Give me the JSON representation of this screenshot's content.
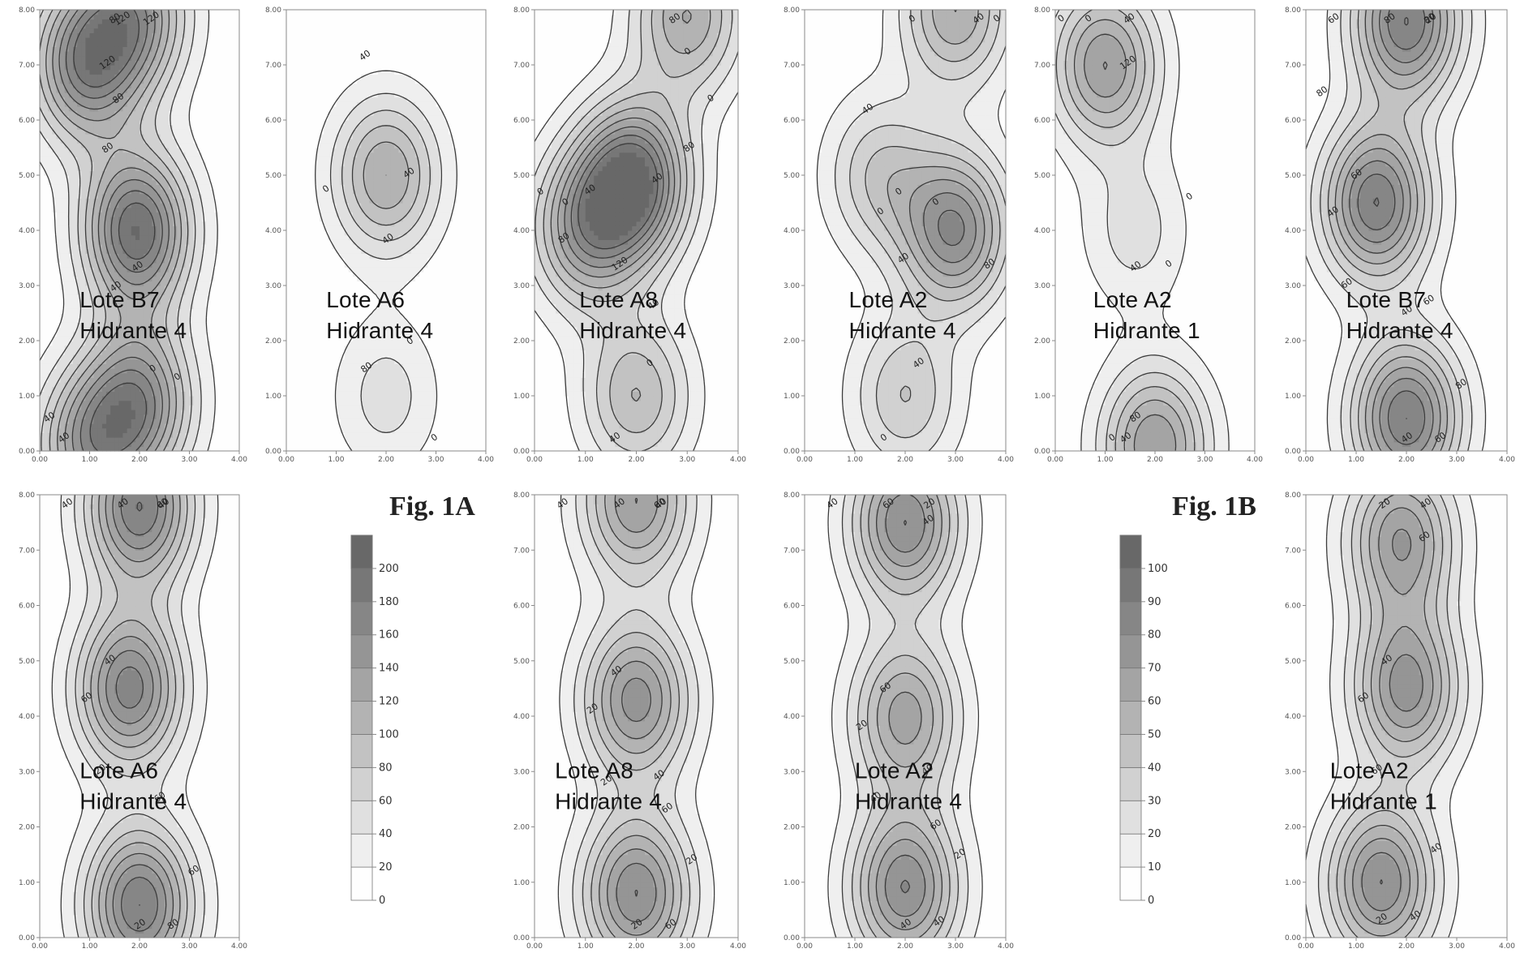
{
  "figures": [
    {
      "title": "Fig. 1A"
    },
    {
      "title": "Fig. 1B"
    }
  ],
  "colorbars": [
    {
      "levels": [
        0,
        20,
        40,
        60,
        80,
        100,
        120,
        140,
        160,
        180,
        200
      ]
    },
    {
      "levels": [
        0,
        10,
        20,
        30,
        40,
        50,
        60,
        70,
        80,
        90,
        100
      ]
    }
  ],
  "chart_data": [
    {
      "type": "contour",
      "figure": "Fig. 1A",
      "label": "Lote B7",
      "hydrant": "Hidrante 4",
      "xlim": [
        0,
        4
      ],
      "ylim": [
        0,
        8
      ],
      "x_ticks": [
        "0.00",
        "1.00",
        "2.00",
        "3.00",
        "4.00"
      ],
      "y_ticks": [
        "0.00",
        "1.00",
        "2.00",
        "3.00",
        "4.00",
        "5.00",
        "6.00",
        "7.00",
        "8.00"
      ],
      "peaks": [
        {
          "x": 0.9,
          "y": 7.0,
          "value": 160
        },
        {
          "x": 1.9,
          "y": 7.9,
          "value": 140
        },
        {
          "x": 1.95,
          "y": 4.0,
          "value": 200
        },
        {
          "x": 2.0,
          "y": 0.9,
          "value": 150
        },
        {
          "x": 1.0,
          "y": 0.1,
          "value": 130
        }
      ],
      "contour_labels": [
        "120",
        "80",
        "40",
        "0",
        "40",
        "80",
        "120",
        "40",
        "0",
        "40",
        "80",
        "120"
      ]
    },
    {
      "type": "contour",
      "figure": "Fig. 1A",
      "label": "Lote A6",
      "hydrant": "Hidrante 4",
      "xlim": [
        0,
        4
      ],
      "ylim": [
        0,
        8
      ],
      "x_ticks": [
        "0.00",
        "1.00",
        "2.00",
        "3.00",
        "4.00"
      ],
      "y_ticks": [
        "0.00",
        "1.00",
        "2.00",
        "3.00",
        "4.00",
        "5.00",
        "6.00",
        "7.00",
        "8.00"
      ],
      "peaks": [
        {
          "x": 2.0,
          "y": 5.0,
          "value": 120
        },
        {
          "x": 2.0,
          "y": 1.0,
          "value": 50
        }
      ],
      "contour_labels": [
        "40",
        "80",
        "40",
        "0",
        "0",
        "0",
        "40"
      ]
    },
    {
      "type": "contour",
      "figure": "Fig. 1A",
      "label": "Lote A8",
      "hydrant": "Hidrante 4",
      "xlim": [
        0,
        4
      ],
      "ylim": [
        0,
        8
      ],
      "x_ticks": [
        "0.00",
        "1.00",
        "2.00",
        "3.00",
        "4.00"
      ],
      "y_ticks": [
        "0.00",
        "1.00",
        "2.00",
        "3.00",
        "4.00",
        "5.00",
        "6.00",
        "7.00",
        "8.00"
      ],
      "peaks": [
        {
          "x": 1.95,
          "y": 4.9,
          "value": 200
        },
        {
          "x": 1.0,
          "y": 4.0,
          "value": 130
        },
        {
          "x": 3.0,
          "y": 7.9,
          "value": 120
        },
        {
          "x": 2.0,
          "y": 1.0,
          "value": 100
        }
      ],
      "contour_labels": [
        "40",
        "0",
        "0",
        "0",
        "40",
        "120",
        "80",
        "40",
        "80",
        "0",
        "0",
        "40",
        "80"
      ]
    },
    {
      "type": "contour",
      "figure": "Fig. 1A",
      "label": "Lote A2",
      "hydrant": "Hidrante 4",
      "xlim": [
        0,
        4
      ],
      "ylim": [
        0,
        8
      ],
      "x_ticks": [
        "0.00",
        "1.00",
        "2.00",
        "3.00",
        "4.00"
      ],
      "y_ticks": [
        "0.00",
        "1.00",
        "2.00",
        "3.00",
        "4.00",
        "5.00",
        "6.00",
        "7.00",
        "8.00"
      ],
      "peaks": [
        {
          "x": 3.0,
          "y": 8.0,
          "value": 120
        },
        {
          "x": 3.0,
          "y": 4.0,
          "value": 160
        },
        {
          "x": 1.5,
          "y": 5.0,
          "value": 80
        },
        {
          "x": 2.0,
          "y": 1.0,
          "value": 80
        }
      ],
      "contour_labels": [
        "40",
        "0",
        "0",
        "40",
        "0",
        "80",
        "40",
        "0",
        "0",
        "0",
        "40"
      ]
    },
    {
      "type": "contour",
      "figure": "Fig. 1A",
      "label": "Lote A2",
      "hydrant": "Hidrante 1",
      "xlim": [
        0,
        4
      ],
      "ylim": [
        0,
        8
      ],
      "x_ticks": [
        "0.00",
        "1.00",
        "2.00",
        "3.00",
        "4.00"
      ],
      "y_ticks": [
        "0.00",
        "1.00",
        "2.00",
        "3.00",
        "4.00",
        "5.00",
        "6.00",
        "7.00",
        "8.00"
      ],
      "peaks": [
        {
          "x": 1.0,
          "y": 7.0,
          "value": 140
        },
        {
          "x": 2.0,
          "y": 0.1,
          "value": 140
        },
        {
          "x": 1.6,
          "y": 4.0,
          "value": 50
        }
      ],
      "contour_labels": [
        "120",
        "80",
        "40",
        "40",
        "0",
        "0",
        "0",
        "40",
        "0",
        "0"
      ]
    },
    {
      "type": "contour",
      "figure": "Fig. 1B",
      "label": "Lote B7",
      "hydrant": "Hidrante 4",
      "xlim": [
        0,
        4
      ],
      "ylim": [
        0,
        8
      ],
      "x_ticks": [
        "0.00",
        "1.00",
        "2.00",
        "3.00",
        "4.00"
      ],
      "y_ticks": [
        "0.00",
        "1.00",
        "2.00",
        "3.00",
        "4.00",
        "5.00",
        "6.00",
        "7.00",
        "8.00"
      ],
      "peaks": [
        {
          "x": 2.0,
          "y": 7.8,
          "value": 90
        },
        {
          "x": 1.4,
          "y": 4.5,
          "value": 90
        },
        {
          "x": 2.0,
          "y": 0.6,
          "value": 90
        }
      ],
      "contour_labels": [
        "80",
        "60",
        "40",
        "20",
        "40",
        "60",
        "80",
        "60",
        "80",
        "60",
        "40",
        "60",
        "80"
      ]
    },
    {
      "type": "contour",
      "figure": "Fig. 1B",
      "label": "Lote A6",
      "hydrant": "Hidrante 4",
      "xlim": [
        0,
        4
      ],
      "ylim": [
        0,
        8
      ],
      "x_ticks": [
        "0.00",
        "1.00",
        "2.00",
        "3.00",
        "4.00"
      ],
      "y_ticks": [
        "0.00",
        "1.00",
        "2.00",
        "3.00",
        "4.00",
        "5.00",
        "6.00",
        "7.00",
        "8.00"
      ],
      "peaks": [
        {
          "x": 2.0,
          "y": 7.8,
          "value": 90
        },
        {
          "x": 1.8,
          "y": 4.5,
          "value": 85
        },
        {
          "x": 2.0,
          "y": 0.6,
          "value": 90
        }
      ],
      "contour_labels": [
        "60",
        "40",
        "20",
        "40",
        "60",
        "80",
        "40",
        "20",
        "60",
        "40",
        "60"
      ]
    },
    {
      "type": "contour",
      "figure": "Fig. 1B",
      "label": "Lote A8",
      "hydrant": "Hidrante 4",
      "xlim": [
        0,
        4
      ],
      "ylim": [
        0,
        8
      ],
      "x_ticks": [
        "0.00",
        "1.00",
        "2.00",
        "3.00",
        "4.00"
      ],
      "y_ticks": [
        "0.00",
        "1.00",
        "2.00",
        "3.00",
        "4.00",
        "5.00",
        "6.00",
        "7.00",
        "8.00"
      ],
      "peaks": [
        {
          "x": 2.0,
          "y": 7.9,
          "value": 70
        },
        {
          "x": 2.0,
          "y": 4.3,
          "value": 75
        },
        {
          "x": 2.0,
          "y": 0.8,
          "value": 80
        }
      ],
      "contour_labels": [
        "60",
        "40",
        "20",
        "40",
        "20",
        "60",
        "40",
        "20",
        "20",
        "40",
        "60",
        "40"
      ]
    },
    {
      "type": "contour",
      "figure": "Fig. 1B",
      "label": "Lote A2",
      "hydrant": "Hidrante 4",
      "xlim": [
        0,
        4
      ],
      "ylim": [
        0,
        8
      ],
      "x_ticks": [
        "0.00",
        "1.00",
        "2.00",
        "3.00",
        "4.00"
      ],
      "y_ticks": [
        "0.00",
        "1.00",
        "2.00",
        "3.00",
        "4.00",
        "5.00",
        "6.00",
        "7.00",
        "8.00"
      ],
      "peaks": [
        {
          "x": 2.0,
          "y": 7.5,
          "value": 80
        },
        {
          "x": 2.0,
          "y": 4.0,
          "value": 65
        },
        {
          "x": 2.0,
          "y": 0.9,
          "value": 80
        }
      ],
      "contour_labels": [
        "40",
        "60",
        "40",
        "20",
        "20",
        "40",
        "60",
        "40",
        "20",
        "40",
        "60",
        "40"
      ]
    },
    {
      "type": "contour",
      "figure": "Fig. 1B",
      "label": "Lote A2",
      "hydrant": "Hidrante 1",
      "xlim": [
        0,
        4
      ],
      "ylim": [
        0,
        8
      ],
      "x_ticks": [
        "0.00",
        "1.00",
        "2.00",
        "3.00",
        "4.00"
      ],
      "y_ticks": [
        "0.00",
        "1.00",
        "2.00",
        "3.00",
        "4.00",
        "5.00",
        "6.00",
        "7.00",
        "8.00"
      ],
      "peaks": [
        {
          "x": 1.9,
          "y": 7.2,
          "value": 70
        },
        {
          "x": 2.0,
          "y": 4.5,
          "value": 75
        },
        {
          "x": 1.5,
          "y": 1.0,
          "value": 80
        }
      ],
      "contour_labels": [
        "60",
        "40",
        "20",
        "40",
        "60",
        "40",
        "20",
        "60",
        "40"
      ]
    }
  ]
}
